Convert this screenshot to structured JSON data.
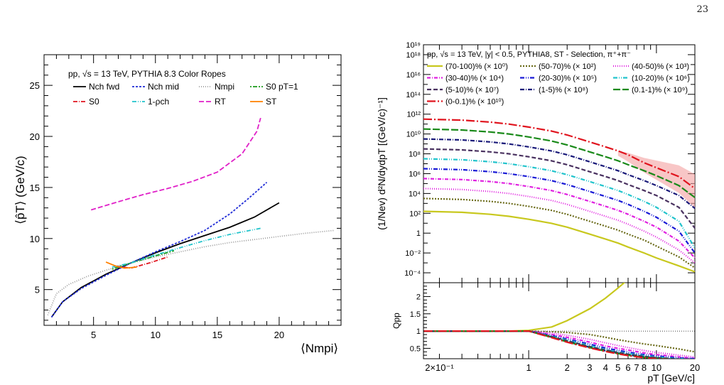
{
  "page_number": "23",
  "chart_data": [
    {
      "type": "line",
      "header": "pp, √s = 13 TeV, PYTHIA 8.3 Color Ropes",
      "ylabel": "⟨p̂T⟩ (GeV/c)",
      "xlabel": "⟨Nmpi⟩",
      "xlim": [
        1,
        25
      ],
      "ylim": [
        1.5,
        28
      ],
      "xticks": [
        "5",
        "10",
        "15",
        "20"
      ],
      "yticks": [
        "5",
        "10",
        "15",
        "20",
        "25"
      ],
      "series": [
        {
          "name": "Nch fwd",
          "color": "#000000",
          "dash": "",
          "x": [
            1.6,
            2.5,
            4,
            6,
            8,
            10,
            12,
            14,
            16,
            18,
            20
          ],
          "y": [
            2.3,
            3.8,
            5.2,
            6.5,
            7.6,
            8.6,
            9.5,
            10.3,
            11.1,
            12.1,
            13.5
          ]
        },
        {
          "name": "Nch mid",
          "color": "#1f2bd6",
          "dash": "3,2",
          "x": [
            1.6,
            2.5,
            4,
            6,
            8,
            10,
            12,
            14,
            16,
            17.5,
            19
          ],
          "y": [
            2.3,
            3.8,
            5.1,
            6.4,
            7.6,
            8.7,
            9.7,
            10.8,
            12.4,
            13.9,
            15.5
          ]
        },
        {
          "name": "Nmpi",
          "color": "#999999",
          "dash": "1,2",
          "x": [
            1.3,
            2,
            3,
            4.5,
            6,
            8,
            10,
            12,
            14,
            16,
            18,
            20,
            22,
            24.5
          ],
          "y": [
            2.5,
            4.6,
            5.5,
            6.3,
            6.9,
            7.6,
            8.2,
            8.7,
            9.2,
            9.6,
            9.9,
            10.2,
            10.5,
            10.8
          ]
        },
        {
          "name": "S0 pT=1",
          "color": "#1a9a1a",
          "dash": "2,2,6,2",
          "x": [
            6.5,
            8,
            10,
            11.5
          ],
          "y": [
            7.0,
            7.6,
            8.3,
            8.8
          ]
        },
        {
          "name": "S0",
          "color": "#e0141e",
          "dash": "6,2,1,2",
          "x": [
            6.8,
            8,
            9.5,
            11
          ],
          "y": [
            7.3,
            7.1,
            7.6,
            8.2
          ]
        },
        {
          "name": "1-ρch",
          "color": "#22c4cc",
          "dash": "6,2,1,2,1,2",
          "x": [
            6.5,
            8,
            10,
            12,
            14,
            16,
            18.5
          ],
          "y": [
            7.2,
            7.6,
            8.4,
            9.1,
            9.8,
            10.4,
            11.0
          ]
        },
        {
          "name": "RT",
          "color": "#e020c8",
          "dash": "7,3",
          "x": [
            4.8,
            7,
            9,
            11,
            13,
            15,
            17,
            18.2,
            18.5
          ],
          "y": [
            12.8,
            13.6,
            14.3,
            14.9,
            15.6,
            16.5,
            18.3,
            20.5,
            21.8
          ]
        },
        {
          "name": "ST",
          "color": "#ff8000",
          "dash": "",
          "x": [
            6.0,
            6.8,
            7.5,
            8.5
          ],
          "y": [
            7.7,
            7.3,
            7.1,
            7.2
          ]
        }
      ]
    },
    {
      "type": "line",
      "header": "pp, √s = 13 TeV, |y| < 0.5, PYTHIA8, ST - Selection, π⁺+π⁻",
      "ylabel": "(1/Nev) d²N/dydpT [(GeV/c)⁻¹]",
      "xlabel": "pT [GeV/c]",
      "log_x": true,
      "log_y": true,
      "xlim": [
        0.15,
        20
      ],
      "ylim": [
        1e-05,
        1e+19
      ],
      "xticks": [
        {
          "v": 0.2,
          "label": "2×10⁻¹"
        },
        {
          "v": 1,
          "label": "1"
        },
        {
          "v": 2,
          "label": "2"
        },
        {
          "v": 3,
          "label": "3"
        },
        {
          "v": 4,
          "label": "4"
        },
        {
          "v": 5,
          "label": "5"
        },
        {
          "v": 6,
          "label": "6"
        },
        {
          "v": 7,
          "label": "7"
        },
        {
          "v": 8,
          "label": "8"
        },
        {
          "v": 10,
          "label": "10"
        },
        {
          "v": 20,
          "label": "20"
        }
      ],
      "yticks": [
        {
          "e": -4,
          "label": "10⁻⁴"
        },
        {
          "e": -2,
          "label": "10⁻²"
        },
        {
          "e": 0,
          "label": "1"
        },
        {
          "e": 2,
          "label": "10²"
        },
        {
          "e": 4,
          "label": "10⁴"
        },
        {
          "e": 6,
          "label": "10⁶"
        },
        {
          "e": 8,
          "label": "10⁸"
        },
        {
          "e": 10,
          "label": "10¹⁰"
        },
        {
          "e": 12,
          "label": "10¹²"
        },
        {
          "e": 14,
          "label": "10¹⁴"
        },
        {
          "e": 16,
          "label": "10¹⁶"
        },
        {
          "e": 18,
          "label": "10¹⁸"
        },
        {
          "e": 19,
          "label": "10¹⁹"
        }
      ],
      "x": [
        0.15,
        0.3,
        0.5,
        0.7,
        1,
        1.5,
        2,
        3,
        4,
        5,
        6,
        8,
        10,
        15,
        20
      ],
      "series": [
        {
          "name": "(70-100)% (× 10⁰)",
          "color": "#c8c81e",
          "dash": "",
          "log10_y": [
            2.2,
            2.1,
            1.9,
            1.7,
            1.4,
            1.0,
            0.6,
            -0.1,
            -0.6,
            -1.0,
            -1.4,
            -2.0,
            -2.5,
            -3.3,
            -3.9
          ]
        },
        {
          "name": "(50-70)% (× 10²)",
          "color": "#6b6b1a",
          "dash": "2,2",
          "log10_y": [
            3.5,
            3.4,
            3.2,
            3.0,
            2.7,
            2.3,
            1.9,
            1.2,
            0.7,
            0.3,
            -0.1,
            -0.7,
            -1.3,
            -2.4,
            -3.5
          ]
        },
        {
          "name": "(40-50)% (× 10³)",
          "color": "#e020e0",
          "dash": "1,2",
          "log10_y": [
            4.5,
            4.4,
            4.2,
            4.0,
            3.7,
            3.3,
            2.9,
            2.2,
            1.7,
            1.3,
            0.9,
            0.2,
            -0.4,
            -1.7,
            -3.0
          ]
        },
        {
          "name": "(30-40)% (× 10⁴)",
          "color": "#e020e0",
          "dash": "5,2,1,2",
          "log10_y": [
            5.5,
            5.4,
            5.2,
            5.0,
            4.7,
            4.3,
            3.9,
            3.2,
            2.7,
            2.3,
            1.9,
            1.2,
            0.6,
            -0.8,
            -2.5
          ]
        },
        {
          "name": "(20-30)% (× 10⁵)",
          "color": "#1a1ad6",
          "dash": "6,2,1,2,1,2",
          "log10_y": [
            6.5,
            6.4,
            6.2,
            6.0,
            5.7,
            5.3,
            4.9,
            4.2,
            3.7,
            3.3,
            2.9,
            2.2,
            1.6,
            0.2,
            -2.0
          ]
        },
        {
          "name": "(10-20)% (× 10⁶)",
          "color": "#22c4cc",
          "dash": "6,2,1,2,1,2",
          "log10_y": [
            7.5,
            7.4,
            7.2,
            7.0,
            6.7,
            6.3,
            5.9,
            5.2,
            4.7,
            4.3,
            3.9,
            3.2,
            2.6,
            1.2,
            -1.5
          ]
        },
        {
          "name": "(5-10)% (× 10⁷)",
          "color": "#4a3260",
          "dash": "6,3",
          "log10_y": [
            8.5,
            8.4,
            8.2,
            8.0,
            7.7,
            7.3,
            6.9,
            6.2,
            5.7,
            5.3,
            4.9,
            4.3,
            3.8,
            2.6,
            0.5
          ]
        },
        {
          "name": "(1-5)% (× 10⁸)",
          "color": "#1a1a7a",
          "dash": "6,2,1,2",
          "log10_y": [
            9.5,
            9.4,
            9.2,
            9.0,
            8.7,
            8.3,
            7.9,
            7.2,
            6.7,
            6.3,
            5.9,
            5.3,
            4.8,
            3.8,
            2.5
          ]
        },
        {
          "name": "(0.1-1)% (× 10⁹)",
          "color": "#1a8a1a",
          "dash": "10,3",
          "log10_y": [
            10.5,
            10.4,
            10.2,
            10.0,
            9.7,
            9.3,
            8.9,
            8.2,
            7.7,
            7.3,
            6.9,
            6.3,
            5.8,
            4.8,
            3.6
          ]
        },
        {
          "name": "(0-0.1)% (× 10¹⁰)",
          "color": "#e0141e",
          "dash": "12,3,2,3",
          "log10_y": [
            11.5,
            11.4,
            11.2,
            11.0,
            10.7,
            10.3,
            9.9,
            9.2,
            8.7,
            8.3,
            7.9,
            7.1,
            6.6,
            5.7,
            4.5
          ]
        }
      ],
      "ratio": {
        "ylabel": "Qpp",
        "ylim": [
          0.2,
          2.4
        ],
        "yticks": [
          "0.5",
          "1",
          "1.5",
          "2"
        ],
        "reference": 1,
        "log10_x": [
          -0.82,
          -0.52,
          -0.3,
          -0.15,
          0,
          0.18,
          0.3,
          0.48,
          0.6,
          0.7,
          0.78,
          0.9,
          1.0,
          1.18,
          1.3
        ],
        "series": [
          {
            "name": "(70-100)%",
            "color": "#c8c81e",
            "dash": "",
            "values": [
              1.0,
              1.0,
              1.0,
              1.0,
              1.02,
              1.12,
              1.3,
              1.65,
              1.95,
              2.25,
              2.5
            ]
          },
          {
            "name": "(50-70)%",
            "color": "#6b6b1a",
            "dash": "2,2",
            "values": [
              1.0,
              1.0,
              1.0,
              1.0,
              1.0,
              0.98,
              0.96,
              0.9,
              0.82,
              0.75,
              0.7,
              0.63,
              0.58,
              0.48,
              0.4
            ]
          },
          {
            "name": "(40-50)%",
            "color": "#e020e0",
            "dash": "1,2",
            "values": [
              1.0,
              1.0,
              1.0,
              1.0,
              1.0,
              0.94,
              0.88,
              0.76,
              0.66,
              0.58,
              0.52,
              0.44,
              0.38,
              0.3,
              0.25
            ]
          },
          {
            "name": "(30-40)%",
            "color": "#e020e0",
            "dash": "5,2,1,2",
            "values": [
              1.0,
              1.0,
              1.0,
              1.0,
              1.0,
              0.9,
              0.82,
              0.68,
              0.57,
              0.5,
              0.45,
              0.37,
              0.32,
              0.25,
              0.21
            ]
          },
          {
            "name": "(20-30)%",
            "color": "#1a1ad6",
            "dash": "6,2,1,2,1,2",
            "values": [
              1.0,
              1.0,
              1.0,
              1.0,
              1.0,
              0.87,
              0.77,
              0.62,
              0.51,
              0.44,
              0.39,
              0.32,
              0.28,
              0.22,
              0.2
            ]
          },
          {
            "name": "(10-20)%",
            "color": "#22c4cc",
            "dash": "6,2,1,2,1,2",
            "values": [
              1.0,
              1.0,
              1.0,
              1.0,
              1.0,
              0.85,
              0.74,
              0.58,
              0.47,
              0.4,
              0.35,
              0.29,
              0.25,
              0.2,
              0.18
            ]
          },
          {
            "name": "(5-10)%",
            "color": "#4a3260",
            "dash": "6,3",
            "values": [
              1.0,
              1.0,
              1.0,
              1.0,
              1.0,
              0.84,
              0.72,
              0.55,
              0.45,
              0.38,
              0.33,
              0.27,
              0.23,
              0.19,
              0.17
            ]
          },
          {
            "name": "(1-5)%",
            "color": "#1a1a7a",
            "dash": "6,2,1,2",
            "values": [
              1.0,
              1.0,
              1.0,
              1.0,
              1.0,
              0.83,
              0.7,
              0.53,
              0.43,
              0.36,
              0.31,
              0.25,
              0.22,
              0.18,
              0.16
            ]
          },
          {
            "name": "(0.1-1)%",
            "color": "#1a8a1a",
            "dash": "10,3",
            "values": [
              1.0,
              1.0,
              1.0,
              1.0,
              1.0,
              0.82,
              0.69,
              0.52,
              0.42,
              0.35,
              0.3,
              0.24,
              0.21,
              0.17,
              0.15
            ]
          },
          {
            "name": "(0-0.1)%",
            "color": "#e0141e",
            "dash": "12,3,2,3",
            "values": [
              1.0,
              1.0,
              1.0,
              1.0,
              1.0,
              0.81,
              0.68,
              0.51,
              0.41,
              0.34,
              0.29,
              0.23,
              0.2,
              0.16,
              0.14
            ]
          }
        ]
      }
    }
  ]
}
